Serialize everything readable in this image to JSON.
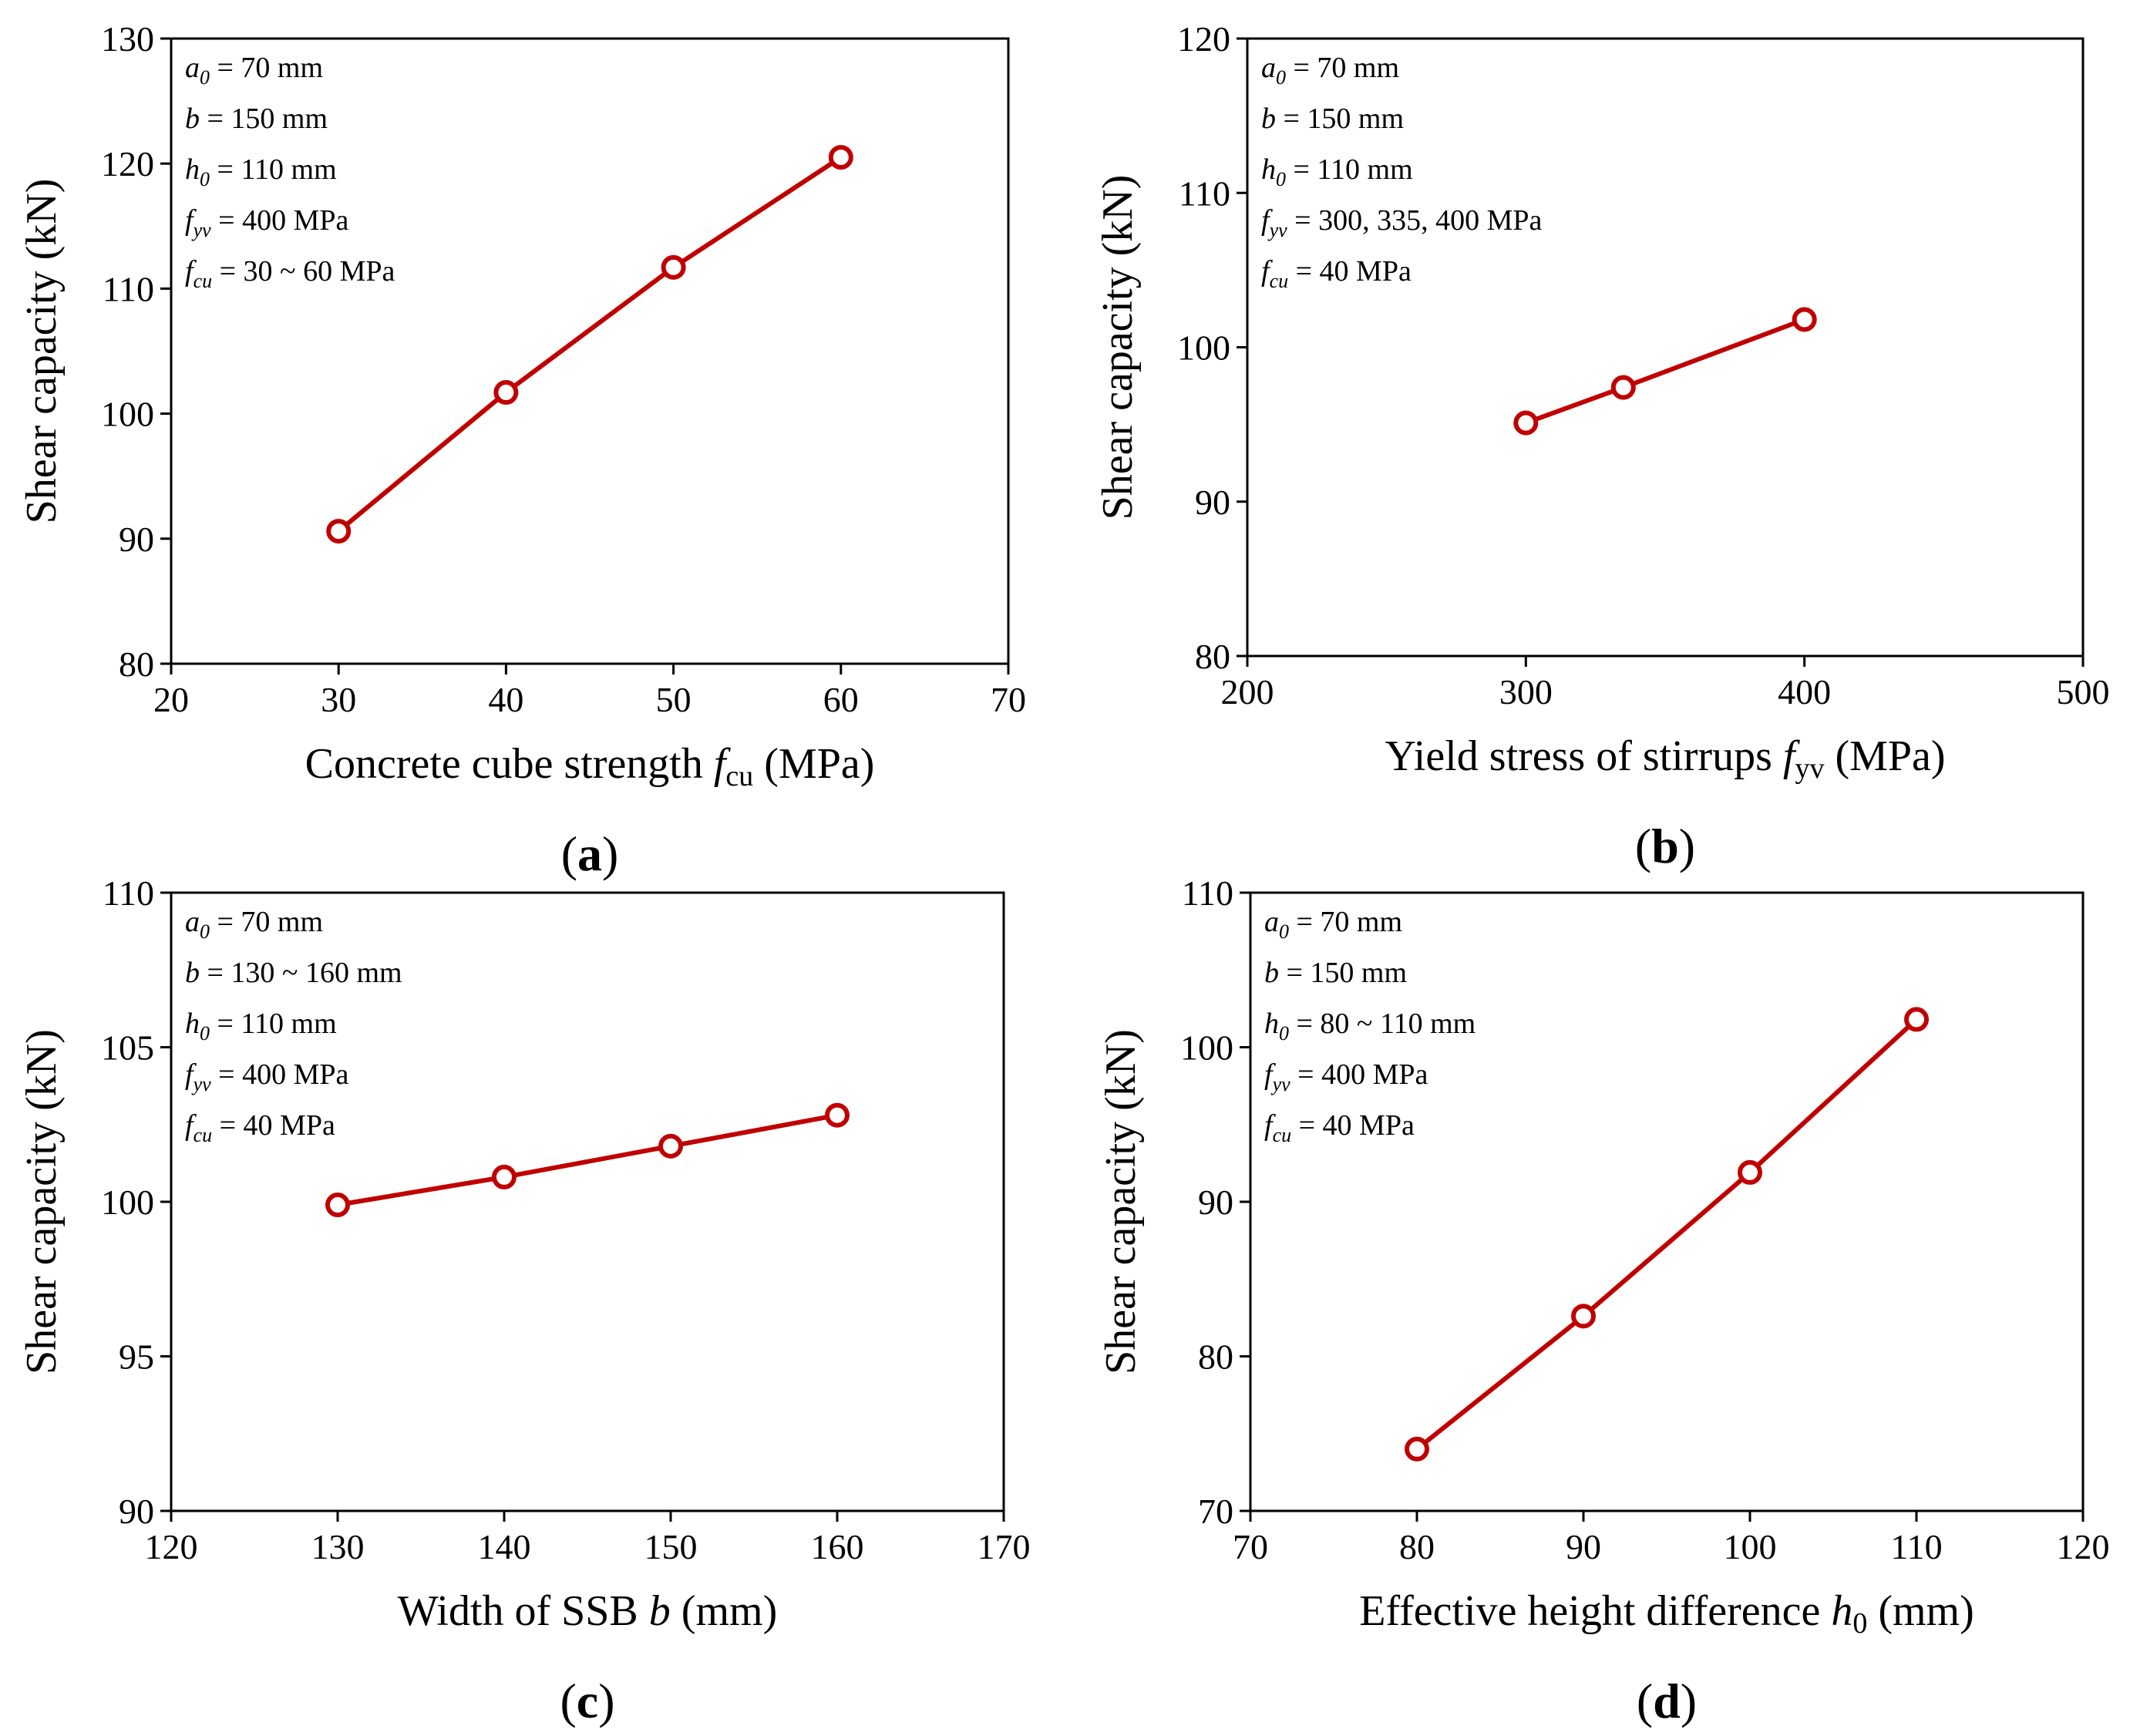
{
  "chart_data": [
    {
      "type": "line",
      "panel_label": "a",
      "x": [
        30,
        40,
        50,
        60
      ],
      "values": [
        90.6,
        101.7,
        111.7,
        120.5
      ],
      "xlim": [
        20,
        70
      ],
      "ylim": [
        80,
        130
      ],
      "xticks": [
        20,
        30,
        40,
        50,
        60,
        70
      ],
      "yticks": [
        80,
        90,
        100,
        110,
        120,
        130
      ],
      "xlabel": "Concrete cube strength",
      "xlabel_symbol": "f",
      "xlabel_subscript": "cu",
      "xlabel_unit": "(MPa)",
      "ylabel": "Shear capacity (kN)",
      "annotations": [
        {
          "symbol": "a",
          "subscript": "0",
          "value": "= 70 mm"
        },
        {
          "symbol": "b",
          "subscript": "",
          "value": "= 150 mm"
        },
        {
          "symbol": "h",
          "subscript": "0",
          "value": "= 110 mm"
        },
        {
          "symbol": "f",
          "subscript": "yv",
          "value": "= 400 MPa"
        },
        {
          "symbol": "f",
          "subscript": "cu",
          "value": "= 30 ~ 60 MPa"
        }
      ]
    },
    {
      "type": "line",
      "panel_label": "b",
      "x": [
        300,
        335,
        400
      ],
      "values": [
        95.1,
        97.4,
        101.8
      ],
      "xlim": [
        200,
        500
      ],
      "ylim": [
        80,
        120
      ],
      "xticks": [
        200,
        300,
        400,
        500
      ],
      "yticks": [
        80,
        90,
        100,
        110,
        120
      ],
      "xlabel": "Yield stress of stirrups",
      "xlabel_symbol": "f",
      "xlabel_subscript": "yv",
      "xlabel_unit": "(MPa)",
      "ylabel": "Shear capacity (kN)",
      "annotations": [
        {
          "symbol": "a",
          "subscript": "0",
          "value": "= 70 mm"
        },
        {
          "symbol": "b",
          "subscript": "",
          "value": "= 150 mm"
        },
        {
          "symbol": "h",
          "subscript": "0",
          "value": "= 110 mm"
        },
        {
          "symbol": "f",
          "subscript": "yv",
          "value": "= 300, 335, 400 MPa"
        },
        {
          "symbol": "f",
          "subscript": "cu",
          "value": "= 40 MPa"
        }
      ]
    },
    {
      "type": "line",
      "panel_label": "c",
      "x": [
        130,
        140,
        150,
        160
      ],
      "values": [
        99.9,
        100.8,
        101.8,
        102.8
      ],
      "xlim": [
        120,
        170
      ],
      "ylim": [
        90,
        110
      ],
      "xticks": [
        120,
        130,
        140,
        150,
        160,
        170
      ],
      "yticks": [
        90,
        95,
        100,
        105,
        110
      ],
      "xlabel": "Width of SSB",
      "xlabel_symbol": "b",
      "xlabel_subscript": "",
      "xlabel_unit": "(mm)",
      "ylabel": "Shear capacity (kN)",
      "annotations": [
        {
          "symbol": "a",
          "subscript": "0",
          "value": "= 70 mm"
        },
        {
          "symbol": "b",
          "subscript": "",
          "value": "= 130 ~ 160 mm"
        },
        {
          "symbol": "h",
          "subscript": "0",
          "value": "= 110 mm"
        },
        {
          "symbol": "f",
          "subscript": "yv",
          "value": "= 400 MPa"
        },
        {
          "symbol": "f",
          "subscript": "cu",
          "value": "= 40 MPa"
        }
      ]
    },
    {
      "type": "line",
      "panel_label": "d",
      "x": [
        80,
        90,
        100,
        110
      ],
      "values": [
        74.0,
        82.6,
        91.9,
        101.8
      ],
      "xlim": [
        70,
        120
      ],
      "ylim": [
        70,
        110
      ],
      "xticks": [
        70,
        80,
        90,
        100,
        110,
        120
      ],
      "yticks": [
        70,
        80,
        90,
        100,
        110
      ],
      "xlabel": "Effective height difference",
      "xlabel_symbol": "h",
      "xlabel_subscript": "0",
      "xlabel_unit": "(mm)",
      "ylabel": "Shear capacity (kN)",
      "annotations": [
        {
          "symbol": "a",
          "subscript": "0",
          "value": "= 70 mm"
        },
        {
          "symbol": "b",
          "subscript": "",
          "value": "= 150 mm"
        },
        {
          "symbol": "h",
          "subscript": "0",
          "value": "= 80 ~ 110 mm"
        },
        {
          "symbol": "f",
          "subscript": "yv",
          "value": "= 400 MPa"
        },
        {
          "symbol": "f",
          "subscript": "cu",
          "value": "= 40 MPa"
        }
      ]
    }
  ],
  "colors": {
    "series": "#c00000",
    "axes": "#000000",
    "marker_fill": "#ffffff"
  }
}
